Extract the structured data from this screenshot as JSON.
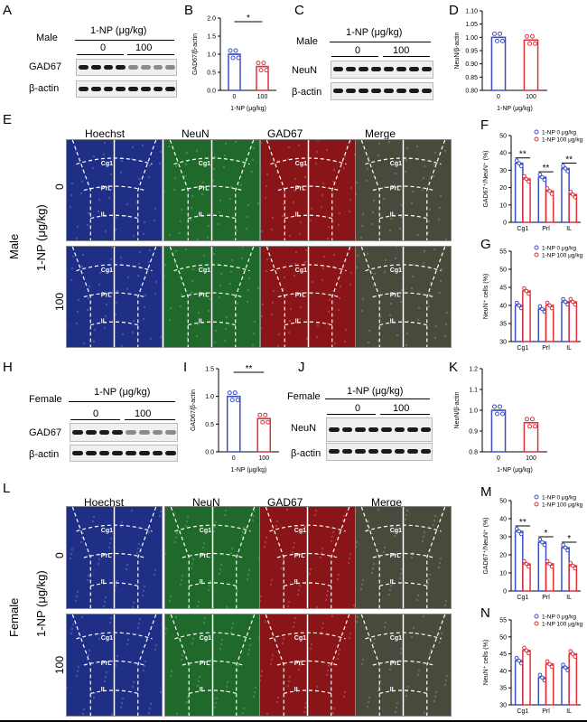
{
  "panels": {
    "A": "A",
    "B": "B",
    "C": "C",
    "D": "D",
    "E": "E",
    "F": "F",
    "G": "G",
    "H": "H",
    "I": "I",
    "J": "J",
    "K": "K",
    "L": "L",
    "M": "M",
    "N": "N"
  },
  "text": {
    "male": "Male",
    "female": "Female",
    "np_unit": "1-NP (μg/kg)",
    "dose0": "0",
    "dose100": "100",
    "gad67": "GAD67",
    "bactin": "β-actin",
    "neun": "NeuN",
    "hoechst": "Hoechst",
    "merge": "Merge",
    "region_cg1": "Cg1",
    "region_prl": "PrL",
    "region_il": "IL"
  },
  "colors": {
    "blue": "#3b4fc4",
    "red": "#e0303a",
    "hoechst": "#1f2f86",
    "neun": "#1f6a2a",
    "gad": "#8a1518",
    "merge": "#4a4a3c"
  },
  "chart_data": [
    {
      "id": "B",
      "type": "bar",
      "categories": [
        "0",
        "100"
      ],
      "values": [
        1.0,
        0.66
      ],
      "ylabel": "GAD67/β-actin",
      "xlabel": "1-NP (μg/kg)",
      "ylim": [
        0,
        2.0
      ],
      "yticks": [
        "0.0",
        "0.5",
        "1.0",
        "1.5",
        "2.0"
      ],
      "sig": "*"
    },
    {
      "id": "D",
      "type": "bar",
      "categories": [
        "0",
        "100"
      ],
      "values": [
        1.0,
        0.99
      ],
      "ylabel": "NeuN/β-actin",
      "xlabel": "1-NP (μg/kg)",
      "ylim": [
        0.8,
        1.1
      ],
      "yticks": [
        "0.80",
        "0.85",
        "0.90",
        "0.95",
        "1.00",
        "1.05",
        "1.10"
      ]
    },
    {
      "id": "F",
      "type": "bar",
      "categories": [
        "Cg1",
        "Prl",
        "IL"
      ],
      "series": [
        {
          "name": "1-NP 0 μg/kg",
          "values": [
            34,
            26,
            31
          ]
        },
        {
          "name": "1-NP 100 μg/kg",
          "values": [
            25,
            18,
            16
          ]
        }
      ],
      "ylabel": "GAD67⁺/NeuN⁺ (%)",
      "ylim": [
        0,
        50
      ],
      "yticks": [
        "0",
        "10",
        "20",
        "30",
        "40",
        "50"
      ],
      "sig": [
        "**",
        "**",
        "**"
      ]
    },
    {
      "id": "G",
      "type": "bar",
      "categories": [
        "Cg1",
        "Prl",
        "IL"
      ],
      "series": [
        {
          "name": "1-NP 0 μg/kg",
          "values": [
            40,
            39,
            41
          ]
        },
        {
          "name": "1-NP 100 μg/kg",
          "values": [
            44,
            40,
            41
          ]
        }
      ],
      "ylabel": "NeuN⁺ cells (%)",
      "ylim": [
        30,
        55
      ],
      "yticks": [
        "30",
        "35",
        "40",
        "45",
        "50",
        "55"
      ]
    },
    {
      "id": "I",
      "type": "bar",
      "categories": [
        "0",
        "100"
      ],
      "values": [
        1.0,
        0.6
      ],
      "ylabel": "GAD67/β-actin",
      "xlabel": "1-NP (μg/kg)",
      "ylim": [
        0,
        1.5
      ],
      "yticks": [
        "0.0",
        "0.5",
        "1.0",
        "1.5"
      ],
      "sig": "**"
    },
    {
      "id": "K",
      "type": "bar",
      "categories": [
        "0",
        "100"
      ],
      "values": [
        1.0,
        0.94
      ],
      "ylabel": "NeuN/β-actin",
      "xlabel": "1-NP (μg/kg)",
      "ylim": [
        0.8,
        1.2
      ],
      "yticks": [
        "0.8",
        "0.9",
        "1.0",
        "1.1",
        "1.2"
      ]
    },
    {
      "id": "M",
      "type": "bar",
      "categories": [
        "Cg1",
        "Prl",
        "IL"
      ],
      "series": [
        {
          "name": "1-NP 0 μg/kg",
          "values": [
            33,
            27,
            24
          ]
        },
        {
          "name": "1-NP 100 μg/kg",
          "values": [
            15,
            15,
            14
          ]
        }
      ],
      "ylabel": "GAD67⁺/NeuN⁺ (%)",
      "ylim": [
        0,
        50
      ],
      "yticks": [
        "0",
        "10",
        "20",
        "30",
        "40",
        "50"
      ],
      "sig": [
        "**",
        "*",
        "*"
      ]
    },
    {
      "id": "N",
      "type": "bar",
      "categories": [
        "Cg1",
        "Prl",
        "IL"
      ],
      "series": [
        {
          "name": "1-NP 0 μg/kg",
          "values": [
            43,
            38,
            41
          ]
        },
        {
          "name": "1-NP 100 μg/kg",
          "values": [
            46,
            42,
            45
          ]
        }
      ],
      "ylabel": "NeuN⁺ cells (%)",
      "ylim": [
        30,
        55
      ],
      "yticks": [
        "30",
        "35",
        "40",
        "45",
        "50",
        "55"
      ]
    }
  ]
}
